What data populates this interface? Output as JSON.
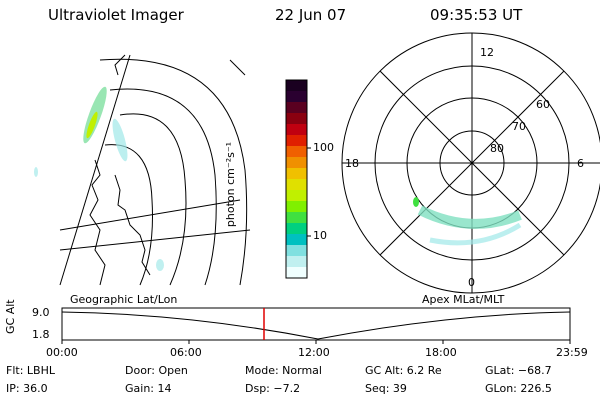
{
  "header": {
    "app_title": "Ultraviolet Imager",
    "date": "22 Jun 07",
    "time": "09:35:53 UT"
  },
  "colorbar": {
    "label": "photon cm⁻²s⁻¹",
    "ticks": [
      "100",
      "10"
    ],
    "colors": [
      "#1a0020",
      "#2a0030",
      "#5a0020",
      "#8a0010",
      "#c00010",
      "#e02000",
      "#f06000",
      "#f09000",
      "#f0c000",
      "#e0e000",
      "#c0f000",
      "#80f000",
      "#40e040",
      "#00d080",
      "#00c0c0",
      "#80e0e0",
      "#c0f0f0",
      "#f0ffff"
    ]
  },
  "polar_plot": {
    "label": "Apex MLat/MLT",
    "mlt_labels": {
      "top": "12",
      "left": "18",
      "right": "6",
      "bottom": "0"
    },
    "lat_labels": [
      "60",
      "70",
      "80"
    ]
  },
  "geo_plot": {
    "label": "Geographic Lat/Lon"
  },
  "orbit": {
    "ylabel": "GC Alt",
    "ymax": "9.0",
    "ymin": "1.8",
    "x_ticks": [
      "00:00",
      "06:00",
      "12:00",
      "18:00",
      "23:59"
    ],
    "current_time_marker": "09:35"
  },
  "info": {
    "filter": "Flt: LBHL",
    "door": "Door: Open",
    "mode": "Mode: Normal",
    "gc_alt": "GC Alt: 6.2 Re",
    "glat": "GLat: −68.7",
    "ip": "IP: 36.0",
    "gain": "Gain: 14",
    "dsp": "Dsp:    −7.2",
    "seq": "Seq: 39",
    "glon": "GLon: 226.5"
  }
}
